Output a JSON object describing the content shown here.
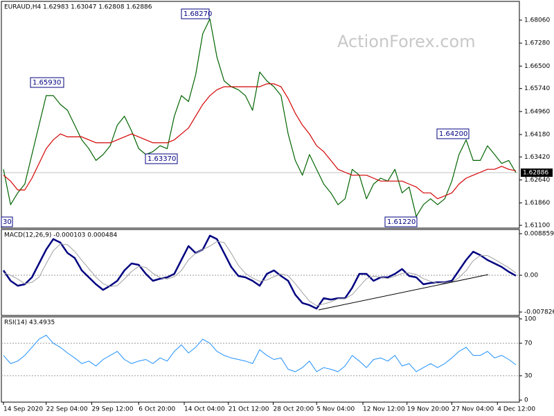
{
  "watermark": "ActionForex.com",
  "chart_data": [
    {
      "type": "line",
      "title": "EURAUD,H4 1.62983 1.63047 1.62808 1.62886",
      "xlim": [
        0,
        72
      ],
      "ylim": [
        1.61006,
        1.68695
      ],
      "yticks": [
        {
          "value": 1.6806,
          "label": "1.68060"
        },
        {
          "value": 1.6728,
          "label": "1.67280"
        },
        {
          "value": 1.665,
          "label": "1.66500"
        },
        {
          "value": 1.6574,
          "label": "1.65740"
        },
        {
          "value": 1.6496,
          "label": "1.64960"
        },
        {
          "value": 1.6418,
          "label": "1.64180"
        },
        {
          "value": 1.6342,
          "label": "1.63420"
        },
        {
          "value": 1.6264,
          "label": "1.62640"
        },
        {
          "value": 1.6186,
          "label": "1.61860"
        },
        {
          "value": 1.611,
          "label": "1.61100"
        }
      ],
      "last_price": 1.62886,
      "annotations": [
        "1.68270",
        "1.65930",
        "1.63370",
        "1.64200",
        "1.61220",
        "30"
      ],
      "series": [
        {
          "color": "#006400",
          "values": [
            1.63,
            1.618,
            1.622,
            1.625,
            1.635,
            1.645,
            1.655,
            1.655,
            1.652,
            1.65,
            1.645,
            1.64,
            1.637,
            1.633,
            1.635,
            1.638,
            1.645,
            1.648,
            1.643,
            1.637,
            1.635,
            1.636,
            1.638,
            1.637,
            1.648,
            1.655,
            1.653,
            1.662,
            1.676,
            1.681,
            1.668,
            1.66,
            1.658,
            1.657,
            1.655,
            1.65,
            1.663,
            1.66,
            1.658,
            1.655,
            1.642,
            1.633,
            1.628,
            1.635,
            1.63,
            1.625,
            1.622,
            1.618,
            1.62,
            1.63,
            1.628,
            1.62,
            1.625,
            1.627,
            1.626,
            1.63,
            1.622,
            1.624,
            1.614,
            1.618,
            1.62,
            1.618,
            1.62,
            1.626,
            1.635,
            1.64,
            1.633,
            1.633,
            1.638,
            1.635,
            1.632,
            1.633,
            1.62886
          ]
        },
        {
          "color": "#d40000",
          "values": [
            1.628,
            1.626,
            1.623,
            1.623,
            1.627,
            1.632,
            1.637,
            1.64,
            1.642,
            1.641,
            1.641,
            1.641,
            1.64,
            1.639,
            1.639,
            1.639,
            1.64,
            1.641,
            1.642,
            1.641,
            1.64,
            1.639,
            1.639,
            1.639,
            1.64,
            1.642,
            1.644,
            1.648,
            1.652,
            1.655,
            1.657,
            1.658,
            1.658,
            1.658,
            1.658,
            1.658,
            1.658,
            1.659,
            1.659,
            1.658,
            1.654,
            1.649,
            1.645,
            1.642,
            1.638,
            1.636,
            1.633,
            1.63,
            1.629,
            1.628,
            1.628,
            1.628,
            1.627,
            1.626,
            1.626,
            1.626,
            1.626,
            1.625,
            1.624,
            1.622,
            1.622,
            1.62,
            1.621,
            1.622,
            1.625,
            1.627,
            1.628,
            1.629,
            1.63,
            1.63,
            1.631,
            1.63,
            1.6295
          ]
        }
      ]
    },
    {
      "type": "line",
      "title": "MACD(12,26,9) -0.000103 0.000484",
      "xlim": [
        0,
        72
      ],
      "ylim": [
        -0.00856,
        0.00975
      ],
      "yticks": [
        0.008859,
        {
          "value": 0,
          "label": "0.00"
        },
        -0.007826
      ],
      "levels": [
        0
      ],
      "series": [
        {
          "color": "#000080",
          "width": 2.5,
          "values": [
            0.00104,
            -0.00118,
            -0.00222,
            -0.00192,
            -0.00044,
            0.00252,
            0.00548,
            0.0077,
            0.00696,
            0.00474,
            0.0037,
            0.00104,
            -0.00044,
            -0.00192,
            -0.00311,
            -0.00222,
            -0.00118,
            0.00104,
            0.00252,
            0.00222,
            0.0003,
            -0.00118,
            -0.00074,
            -0.00044,
            0.0003,
            0.00326,
            0.00622,
            0.00474,
            0.00548,
            0.00844,
            0.0077,
            0.00474,
            0.00178,
            -0.00015,
            -0.00044,
            -0.00118,
            -0.00222,
            0.0003,
            0.00104,
            -0.00015,
            -0.00118,
            -0.00414,
            -0.00592,
            -0.00636,
            -0.0071,
            -0.00488,
            -0.00518,
            -0.00488,
            -0.00488,
            -0.00266,
            0.0003,
            0.0003,
            -0.00118,
            -0.00044,
            -0.00044,
            0.0003,
            0.00133,
            -0.00015,
            -0.00044,
            -0.00192,
            -0.00163,
            -0.00148,
            -0.00148,
            -0.00118,
            0.00104,
            0.00326,
            0.00503,
            0.00429,
            0.00326,
            0.00252,
            0.00178,
            0.00074,
            -0.000103
          ]
        },
        {
          "color": "#a0a0a0",
          "width": 1,
          "values": [
            0.0005,
            0.0,
            -0.0008,
            -0.0018,
            -0.0015,
            -0.0004,
            0.0025,
            0.0052,
            0.0067,
            0.0065,
            0.0051,
            0.0032,
            0.0014,
            -0.0004,
            -0.0018,
            -0.0024,
            -0.0022,
            -0.0008,
            0.0008,
            0.0019,
            0.0017,
            0.0004,
            -0.0005,
            -0.0008,
            -0.0003,
            0.001,
            0.0033,
            0.0047,
            0.0055,
            0.0062,
            0.0072,
            0.007,
            0.0047,
            0.0021,
            0.0004,
            -0.0006,
            -0.0013,
            -0.001,
            -0.0003,
            0.0003,
            -0.0001,
            -0.0018,
            -0.0037,
            -0.0055,
            -0.0065,
            -0.0061,
            -0.0057,
            -0.005,
            -0.005,
            -0.0041,
            -0.0024,
            -0.0007,
            -0.0002,
            -0.0004,
            -0.0007,
            -0.0002,
            0.0004,
            0.0005,
            0.0002,
            -0.0007,
            -0.0013,
            -0.0017,
            -0.0015,
            -0.0014,
            -0.0005,
            0.001,
            0.0031,
            0.0042,
            0.0042,
            0.0034,
            0.0025,
            0.0016,
            0.000484
          ]
        }
      ]
    },
    {
      "type": "line",
      "title": "RSI(14) 43.4935",
      "xlim": [
        0,
        72
      ],
      "ylim": [
        -2.5,
        102.5
      ],
      "yticks": [
        100,
        70,
        30,
        0
      ],
      "levels": [
        70,
        30
      ],
      "xticks": [
        {
          "value": 0,
          "label": "14 Sep 2020"
        },
        {
          "value": 6,
          "label": "22 Sep 04:00"
        },
        {
          "value": 12.4,
          "label": "29 Sep 12:00"
        },
        {
          "value": 19,
          "label": "6 Oct 20:00"
        },
        {
          "value": 25.4,
          "label": "14 Oct 04:00"
        },
        {
          "value": 31.6,
          "label": "21 Oct 12:00"
        },
        {
          "value": 37.9,
          "label": "28 Oct 20:00"
        },
        {
          "value": 44,
          "label": "5 Nov 04:00"
        },
        {
          "value": 50.5,
          "label": "12 Nov 12:00"
        },
        {
          "value": 56.7,
          "label": "19 Nov 20:00"
        },
        {
          "value": 63,
          "label": "27 Nov 04:00"
        },
        {
          "value": 69.4,
          "label": "4 Dec 12:00"
        }
      ],
      "series": [
        {
          "color": "#1e90ff",
          "width": 1,
          "values": [
            55,
            45,
            48,
            55,
            65,
            75,
            80,
            70,
            65,
            58,
            52,
            45,
            48,
            42,
            50,
            55,
            60,
            50,
            45,
            48,
            50,
            45,
            52,
            48,
            60,
            68,
            58,
            65,
            75,
            70,
            60,
            55,
            52,
            50,
            48,
            45,
            62,
            55,
            50,
            52,
            38,
            35,
            40,
            48,
            35,
            40,
            38,
            35,
            42,
            55,
            48,
            40,
            50,
            52,
            48,
            55,
            42,
            45,
            35,
            40,
            45,
            40,
            45,
            52,
            60,
            65,
            55,
            55,
            60,
            52,
            55,
            50,
            43.4935
          ]
        }
      ]
    }
  ]
}
